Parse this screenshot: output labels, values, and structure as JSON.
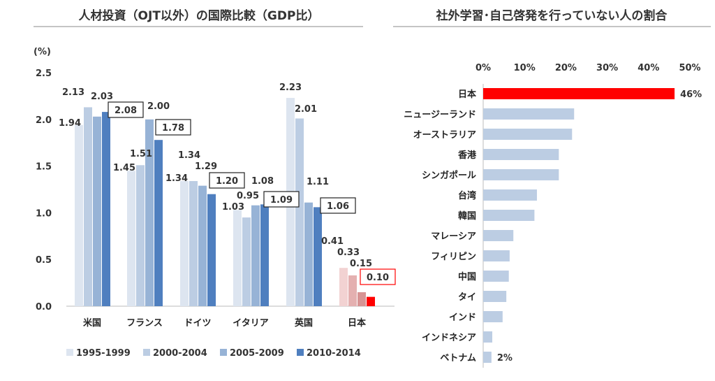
{
  "chart_data": [
    {
      "type": "bar",
      "title": "人材投資（OJT以外）の国際比較（GDP比）",
      "ylabel": "(%)",
      "ylim": [
        0,
        2.5
      ],
      "yticks": [
        "0.0",
        "0.5",
        "1.0",
        "1.5",
        "2.0",
        "2.5"
      ],
      "categories": [
        "米国",
        "フランス",
        "ドイツ",
        "イタリア",
        "英国",
        "日本"
      ],
      "series": [
        {
          "name": "1995-1999",
          "values": [
            1.94,
            1.45,
            1.34,
            1.03,
            2.23,
            0.41
          ]
        },
        {
          "name": "2000-2004",
          "values": [
            2.13,
            1.51,
            1.34,
            0.95,
            2.01,
            0.33
          ]
        },
        {
          "name": "2005-2009",
          "values": [
            2.03,
            2.0,
            1.29,
            1.08,
            1.11,
            0.15
          ]
        },
        {
          "name": "2010-2014",
          "values": [
            2.08,
            1.78,
            1.2,
            1.09,
            1.06,
            0.1
          ]
        }
      ],
      "value_labels": [
        [
          "1.94",
          "2.13",
          "2.03",
          "2.08"
        ],
        [
          "1.45",
          "1.51",
          "2.00",
          "1.78"
        ],
        [
          "1.34",
          "1.34",
          "1.29",
          "1.20"
        ],
        [
          "1.03",
          "0.95",
          "1.08",
          "1.09"
        ],
        [
          "2.23",
          "2.01",
          "1.11",
          "1.06"
        ],
        [
          "0.41",
          "0.33",
          "0.15",
          "0.10"
        ]
      ],
      "colors": [
        "#dde5f0",
        "#bccde3",
        "#97b3d6",
        "#4f7fbf"
      ],
      "japan_colors": [
        "#f2d2d2",
        "#e4b0b0",
        "#d79494",
        "#ff0000"
      ],
      "highlight_box_color": "#222222",
      "japan_box_color": "#ff0000",
      "legend_position": "bottom"
    },
    {
      "type": "bar",
      "orientation": "horizontal",
      "title": "社外学習･自己啓発を行っていない人の割合",
      "xlim": [
        0,
        50
      ],
      "xticks": [
        "0%",
        "10%",
        "20%",
        "30%",
        "40%",
        "50%"
      ],
      "categories": [
        "日本",
        "ニュージーランド",
        "オーストラリア",
        "香港",
        "シンガポール",
        "台湾",
        "韓国",
        "マレーシア",
        "フィリピン",
        "中国",
        "タイ",
        "インド",
        "インドネシア",
        "ベトナム"
      ],
      "values": [
        46.3,
        22.0,
        21.5,
        18.3,
        18.3,
        13.0,
        12.4,
        7.3,
        6.4,
        6.2,
        5.6,
        4.7,
        2.2,
        2.0
      ],
      "value_labels": {
        "0": "46%",
        "13": "2%"
      },
      "colors": {
        "default": "#bccde3",
        "highlight": "#ff0000"
      }
    }
  ]
}
